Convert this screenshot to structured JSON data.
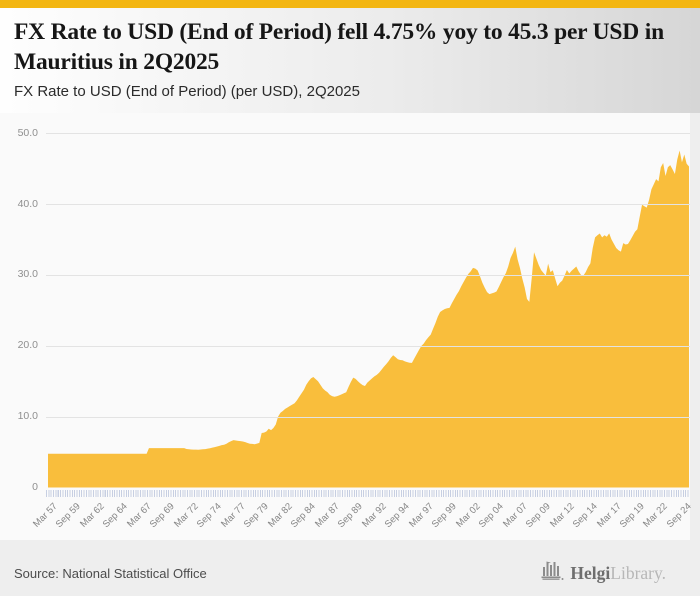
{
  "header": {
    "title": "FX Rate to USD (End of Period) fell 4.75% yoy to 45.3 per USD in Mauritius in 2Q2025",
    "subtitle": "FX Rate to USD (End of Period) (per USD), 2Q2025"
  },
  "chart_data": {
    "type": "area",
    "title": "FX Rate to USD (End of Period) (per USD), 2Q2025",
    "series_name": "FX Rate to USD (End of Period), Mauritius",
    "unit": "per USD",
    "frequency": "quarterly",
    "x_start": "1957Q1",
    "x_end": "2025Q2",
    "x_tick_step_quarters": 10,
    "x_tick_labels": [
      "Mar 57",
      "Sep 59",
      "Mar 62",
      "Sep 64",
      "Mar 67",
      "Sep 69",
      "Mar 72",
      "Sep 74",
      "Mar 77",
      "Sep 79",
      "Mar 82",
      "Sep 84",
      "Mar 87",
      "Sep 89",
      "Mar 92",
      "Sep 94",
      "Mar 97",
      "Sep 99",
      "Mar 02",
      "Sep 04",
      "Mar 07",
      "Sep 09",
      "Mar 12",
      "Sep 14",
      "Mar 17",
      "Sep 19",
      "Mar 22",
      "Sep 24"
    ],
    "y_ticks": [
      0,
      10,
      20,
      30,
      40,
      50
    ],
    "y_tick_labels": [
      "0",
      "10.0",
      "20.0",
      "30.0",
      "40.0",
      "50.0"
    ],
    "ylim": [
      0,
      50
    ],
    "grid": true,
    "legend": false,
    "area_color": "#F9BE3C",
    "latest_value": 45.3,
    "yoy_change_pct": -4.75,
    "values": [
      4.76,
      4.76,
      4.76,
      4.76,
      4.76,
      4.76,
      4.76,
      4.76,
      4.76,
      4.76,
      4.76,
      4.76,
      4.76,
      4.76,
      4.76,
      4.76,
      4.76,
      4.76,
      4.76,
      4.76,
      4.76,
      4.76,
      4.76,
      4.76,
      4.76,
      4.76,
      4.76,
      4.76,
      4.76,
      4.76,
      4.76,
      4.76,
      4.76,
      4.76,
      4.76,
      4.76,
      4.76,
      4.76,
      4.76,
      4.76,
      4.76,
      4.76,
      4.76,
      5.56,
      5.56,
      5.56,
      5.56,
      5.56,
      5.56,
      5.56,
      5.56,
      5.56,
      5.56,
      5.56,
      5.56,
      5.56,
      5.56,
      5.56,
      5.56,
      5.44,
      5.4,
      5.37,
      5.35,
      5.34,
      5.32,
      5.36,
      5.4,
      5.42,
      5.48,
      5.54,
      5.62,
      5.7,
      5.78,
      5.88,
      5.98,
      6.03,
      6.18,
      6.38,
      6.55,
      6.68,
      6.64,
      6.58,
      6.54,
      6.5,
      6.4,
      6.28,
      6.18,
      6.16,
      6.1,
      6.2,
      6.3,
      7.69,
      7.75,
      7.9,
      8.3,
      8.1,
      8.4,
      8.9,
      10.0,
      10.55,
      10.8,
      11.1,
      11.3,
      11.5,
      11.7,
      11.9,
      12.3,
      12.8,
      13.3,
      13.8,
      14.5,
      15.0,
      15.4,
      15.6,
      15.3,
      15.0,
      14.5,
      14.0,
      13.7,
      13.47,
      13.1,
      12.9,
      12.8,
      12.88,
      13.0,
      13.15,
      13.3,
      13.44,
      14.2,
      14.9,
      15.5,
      15.33,
      15.0,
      14.7,
      14.45,
      14.32,
      14.8,
      15.1,
      15.4,
      15.68,
      15.9,
      16.2,
      16.6,
      17.02,
      17.4,
      17.8,
      18.3,
      18.66,
      18.4,
      18.1,
      18.0,
      17.96,
      17.8,
      17.7,
      17.6,
      17.59,
      18.2,
      18.8,
      19.4,
      19.98,
      20.3,
      20.8,
      21.2,
      21.57,
      22.4,
      23.2,
      24.1,
      24.77,
      25.0,
      25.2,
      25.3,
      25.36,
      26.0,
      26.6,
      27.2,
      27.72,
      28.4,
      29.0,
      29.6,
      30.13,
      30.5,
      31.0,
      30.9,
      30.62,
      29.8,
      28.9,
      28.2,
      27.58,
      27.3,
      27.4,
      27.5,
      27.66,
      28.3,
      29.0,
      29.7,
      30.25,
      31.2,
      32.4,
      33.1,
      34.0,
      32.2,
      31.0,
      29.5,
      28.25,
      26.6,
      26.2,
      29.5,
      33.2,
      32.3,
      31.4,
      30.7,
      30.3,
      29.9,
      31.6,
      30.4,
      30.66,
      29.5,
      28.4,
      28.9,
      29.2,
      29.9,
      30.7,
      30.2,
      30.6,
      30.9,
      31.2,
      30.5,
      30.01,
      29.9,
      30.4,
      31.1,
      31.64,
      33.8,
      35.3,
      35.6,
      35.85,
      35.3,
      35.6,
      35.4,
      35.87,
      35.0,
      34.4,
      33.8,
      33.48,
      33.3,
      34.5,
      34.3,
      34.36,
      34.9,
      35.5,
      36.1,
      36.45,
      38.2,
      39.9,
      39.7,
      39.5,
      40.6,
      42.1,
      42.8,
      43.53,
      43.2,
      45.2,
      45.8,
      43.97,
      45.2,
      45.5,
      44.9,
      44.25,
      46.3,
      47.56,
      45.9,
      47.0,
      45.7,
      45.3
    ]
  },
  "footer": {
    "source": "Source: National Statistical Office",
    "logo": {
      "brand_bold": "Helgi",
      "brand_light": "Library."
    }
  }
}
